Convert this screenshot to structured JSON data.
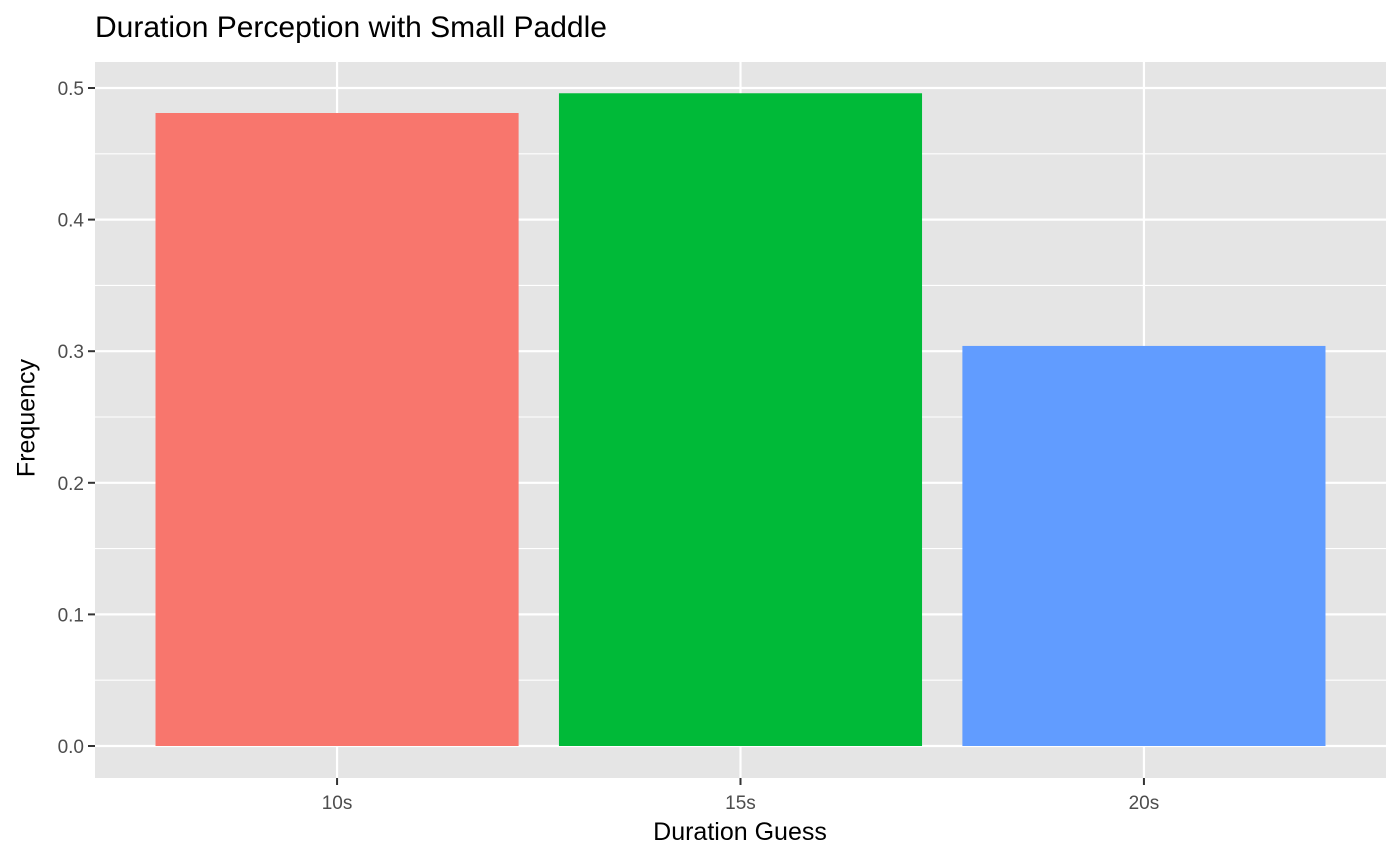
{
  "chart_data": {
    "type": "bar",
    "title": "Duration Perception with Small Paddle",
    "xlabel": "Duration Guess",
    "ylabel": "Frequency",
    "categories": [
      "10s",
      "15s",
      "20s"
    ],
    "values": [
      0.481,
      0.496,
      0.304
    ],
    "colors": [
      "#F8766D",
      "#00BA38",
      "#619CFF"
    ],
    "ylim": [
      0,
      0.52
    ],
    "yticks": [
      "0.0",
      "0.1",
      "0.2",
      "0.3",
      "0.4",
      "0.5"
    ],
    "panel_background": "#E5E5E5",
    "grid": true,
    "legend": "none"
  }
}
